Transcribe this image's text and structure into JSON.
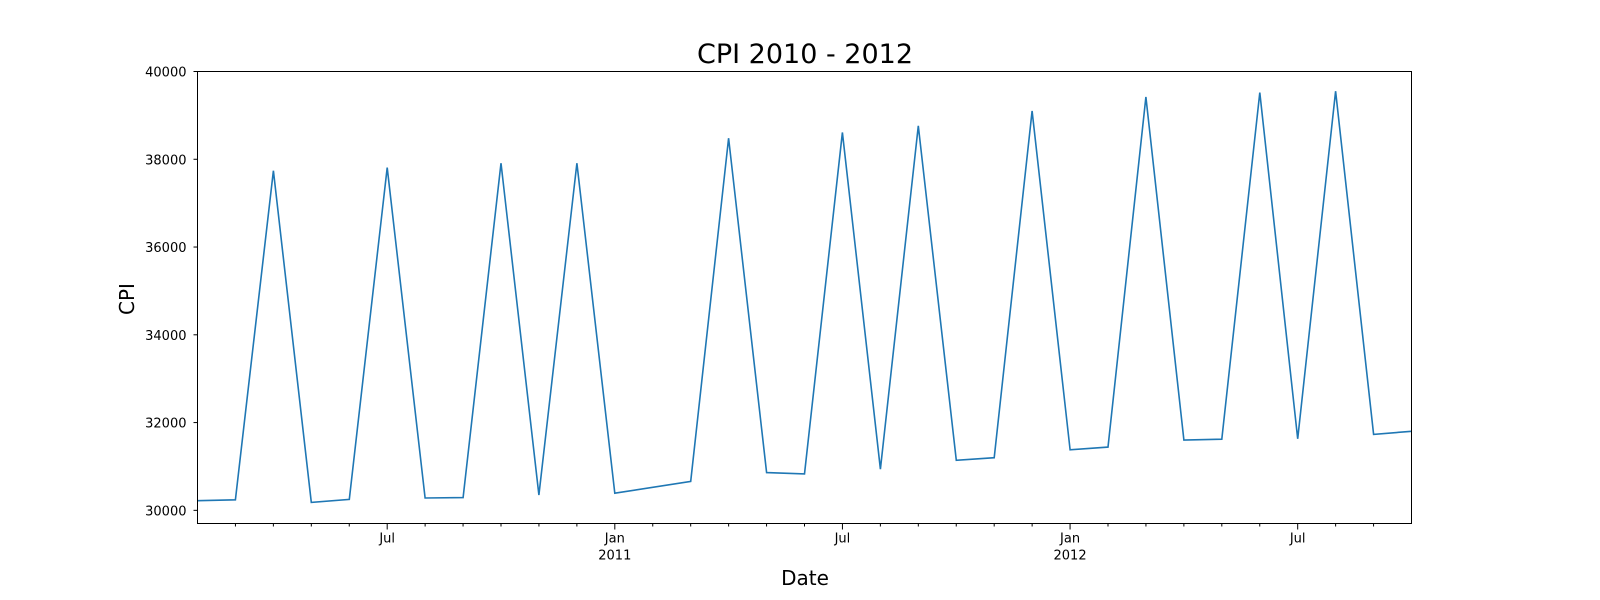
{
  "chart_data": {
    "type": "line",
    "title": "CPI 2010 - 2012",
    "xlabel": "Date",
    "ylabel": "CPI",
    "xlim": [
      "2010-02",
      "2012-10"
    ],
    "ylim": [
      29700,
      40000
    ],
    "grid": false,
    "legend": "none",
    "yticks": [
      30000,
      32000,
      34000,
      36000,
      38000,
      40000
    ],
    "xticks_major": [
      {
        "date": "2010-07",
        "label": "Jul",
        "sublabel": ""
      },
      {
        "date": "2011-01",
        "label": "Jan",
        "sublabel": "2011"
      },
      {
        "date": "2011-07",
        "label": "Jul",
        "sublabel": ""
      },
      {
        "date": "2012-01",
        "label": "Jan",
        "sublabel": "2012"
      },
      {
        "date": "2012-07",
        "label": "Jul",
        "sublabel": ""
      }
    ],
    "series": [
      {
        "color": "#1f77b4",
        "x": [
          "2010-02",
          "2010-03",
          "2010-04",
          "2010-05",
          "2010-06",
          "2010-07",
          "2010-08",
          "2010-09",
          "2010-10",
          "2010-11",
          "2010-12",
          "2011-01",
          "2011-03",
          "2011-04",
          "2011-05",
          "2011-06",
          "2011-07",
          "2011-08",
          "2011-09",
          "2011-10",
          "2011-11",
          "2011-12",
          "2012-01",
          "2012-02",
          "2012-03",
          "2012-04",
          "2012-05",
          "2012-06",
          "2012-07",
          "2012-08",
          "2012-09",
          "2012-10"
        ],
        "y": [
          30220,
          30240,
          37740,
          30180,
          30250,
          37810,
          30280,
          30290,
          37910,
          30350,
          37910,
          30390,
          30660,
          38480,
          30860,
          30830,
          38610,
          30940,
          38760,
          31140,
          31200,
          39100,
          31380,
          31440,
          39420,
          31600,
          31620,
          39520,
          31630,
          39550,
          31730,
          31800
        ]
      }
    ]
  }
}
